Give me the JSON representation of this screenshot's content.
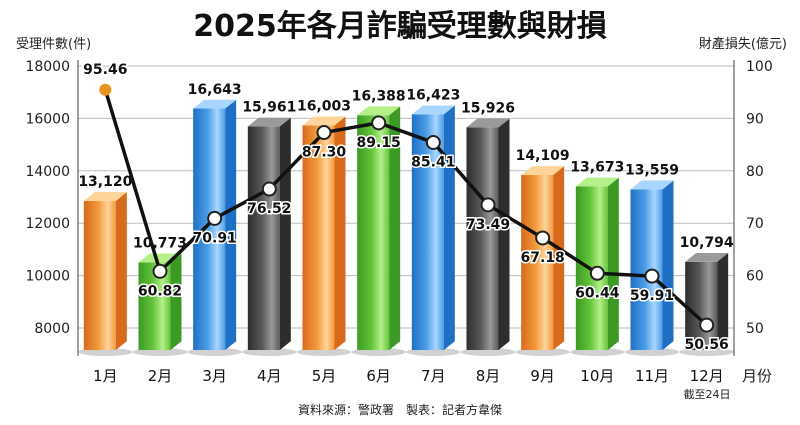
{
  "chart_data": {
    "type": "bar",
    "title": "2025年各月詐騙受理數與財損",
    "ylabel": "受理件數(件)",
    "y2label": "財產損失(億元)",
    "xlabel": "月份",
    "source": "資料來源：警政署　製表：記者方韋傑",
    "note": "截至24日",
    "categories": [
      "1月",
      "2月",
      "3月",
      "4月",
      "5月",
      "6月",
      "7月",
      "8月",
      "9月",
      "10月",
      "11月",
      "12月"
    ],
    "ylim": [
      8000,
      18000
    ],
    "yticks": [
      8000,
      10000,
      12000,
      14000,
      16000,
      18000
    ],
    "y2lim": [
      50,
      100
    ],
    "y2ticks": [
      50,
      60,
      70,
      80,
      90,
      100
    ],
    "series": [
      {
        "type": "bar",
        "axis": "left",
        "values": [
          13120,
          10773,
          16643,
          15961,
          16003,
          16388,
          16423,
          15926,
          14109,
          13673,
          13559,
          10794
        ],
        "labels": [
          "13,120",
          "10,773",
          "16,643",
          "15,961",
          "16,003",
          "16,388",
          "16,423",
          "15,926",
          "14,109",
          "13,673",
          "13,559",
          "10,794"
        ],
        "colors": [
          "orange",
          "green",
          "blue",
          "gray",
          "orange",
          "green",
          "blue",
          "gray",
          "orange",
          "green",
          "blue",
          "gray"
        ]
      },
      {
        "type": "line",
        "axis": "right",
        "values": [
          95.46,
          60.82,
          70.91,
          76.52,
          87.3,
          89.15,
          85.41,
          73.49,
          67.18,
          60.44,
          59.91,
          50.56
        ],
        "labels": [
          "95.46",
          "60.82",
          "70.91",
          "76.52",
          "87.30",
          "89.15",
          "85.41",
          "73.49",
          "67.18",
          "60.44",
          "59.91",
          "50.56"
        ]
      }
    ],
    "palette": {
      "orange": [
        "#d86a1c",
        "#f29a3c",
        "#ffd49a"
      ],
      "green": [
        "#3b9a24",
        "#63c43a",
        "#b4ef8a"
      ],
      "blue": [
        "#1f6fc4",
        "#4a9ce6",
        "#a9d6ff"
      ],
      "gray": [
        "#2d2d2d",
        "#5a5a5a",
        "#9a9a9a"
      ],
      "line": "#111111",
      "first_marker": "#e8951e",
      "grid": "#bdbdbd",
      "background": "#ffffff"
    }
  }
}
